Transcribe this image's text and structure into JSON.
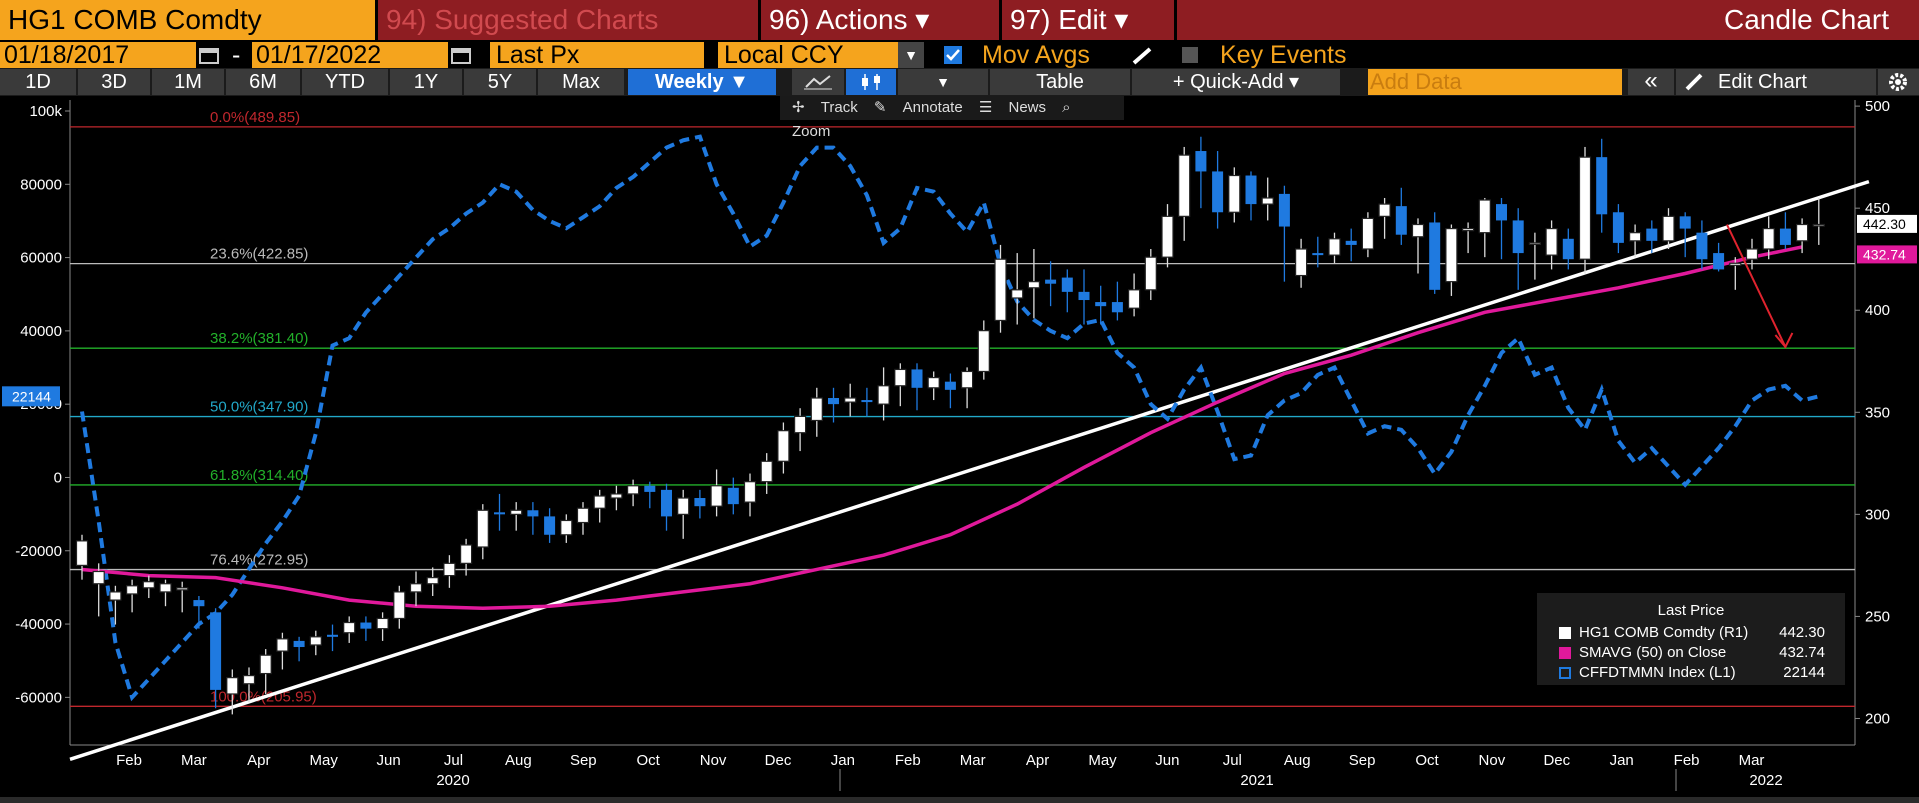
{
  "header": {
    "ticker_label": "HG1 COMB Comdty",
    "suggested_charts": "94) Suggested Charts",
    "actions": "96) Actions ▾",
    "edit": "97) Edit ▾",
    "chart_type_title": "Candle Chart"
  },
  "controls": {
    "start_date": "01/18/2017",
    "date_sep": "-",
    "end_date": "01/17/2022",
    "price_field": "Last Px",
    "currency": "Local CCY",
    "mov_avgs_label": "Mov Avgs",
    "key_events_label": "Key Events"
  },
  "toolbar": {
    "ranges": [
      "1D",
      "3D",
      "1M",
      "6M",
      "YTD",
      "1Y",
      "5Y",
      "Max"
    ],
    "period": "Weekly ▼",
    "table": "Table",
    "quick_add": "+ Quick-Add ▾",
    "add_data_placeholder": "Add Data",
    "collapse": "«",
    "edit_chart": "Edit Chart"
  },
  "subtoolbar": {
    "track": "Track",
    "annotate": "Annotate",
    "news": "News",
    "zoom": "Zoom"
  },
  "colors": {
    "amber": "#f5a41d",
    "maroon": "#8e1d22",
    "blue": "#1f7ae0",
    "magenta": "#e0199b",
    "up": "#ffffff"
  },
  "chart_data": {
    "type": "candlestick",
    "x_tick_labels": [
      "Feb",
      "Mar",
      "Apr",
      "May",
      "Jun",
      "Jul",
      "Aug",
      "Sep",
      "Oct",
      "Nov",
      "Dec",
      "Jan",
      "Feb",
      "Mar",
      "Apr",
      "May",
      "Jun",
      "Jul",
      "Aug",
      "Sep",
      "Oct",
      "Nov",
      "Dec",
      "Jan",
      "Feb",
      "Mar"
    ],
    "x_year_labels": [
      "2020",
      "2021",
      "2022"
    ],
    "left_axis": {
      "ticks": [
        "100k",
        "80000",
        "60000",
        "40000",
        "20000",
        "0",
        "-20000",
        "-40000",
        "-60000"
      ],
      "ylim": [
        -73000,
        103000
      ]
    },
    "right_axis": {
      "ticks": [
        "500",
        "450",
        "400",
        "350",
        "300",
        "250",
        "200"
      ],
      "ylim": [
        187,
        503
      ]
    },
    "fib_levels": [
      {
        "label": "0.0%(489.85)",
        "value": 489.85,
        "color": "#c0272d"
      },
      {
        "label": "23.6%(422.85)",
        "value": 422.85,
        "color": "#bbbbbb"
      },
      {
        "label": "38.2%(381.40)",
        "value": 381.4,
        "color": "#22b02a"
      },
      {
        "label": "50.0%(347.90)",
        "value": 347.9,
        "color": "#22a8c8"
      },
      {
        "label": "61.8%(314.40)",
        "value": 314.4,
        "color": "#22b02a"
      },
      {
        "label": "76.4%(272.95)",
        "value": 272.95,
        "color": "#bbbbbb"
      },
      {
        "label": "100.0%(205.95)",
        "value": 205.95,
        "color": "#c0272d"
      }
    ],
    "trendline": {
      "from": [
        0,
        180
      ],
      "to": [
        107,
        463
      ]
    },
    "arrow": {
      "from": [
        98.5,
        442
      ],
      "to": [
        102,
        382
      ]
    },
    "candles": [
      [
        0,
        275,
        287,
        272,
        290,
        268
      ],
      [
        1,
        266,
        272,
        254,
        276,
        250
      ],
      [
        2,
        258,
        262,
        250,
        265,
        246
      ],
      [
        3,
        261,
        265,
        256,
        268,
        252
      ],
      [
        4,
        264,
        267,
        262,
        270,
        259
      ],
      [
        5,
        262,
        266,
        258,
        268,
        255
      ],
      [
        6,
        263,
        264,
        257,
        267,
        252
      ],
      [
        7,
        258,
        255,
        249,
        260,
        244
      ],
      [
        8,
        252,
        214,
        208,
        254,
        205
      ],
      [
        9,
        212,
        220,
        206,
        224,
        202
      ],
      [
        10,
        217,
        221,
        212,
        225,
        208
      ],
      [
        11,
        222,
        231,
        215,
        234,
        212
      ],
      [
        12,
        233,
        239,
        226,
        242,
        224
      ],
      [
        13,
        238,
        235,
        230,
        240,
        228
      ],
      [
        14,
        236,
        240,
        233,
        243,
        231
      ],
      [
        15,
        241,
        240,
        235,
        246,
        233
      ],
      [
        16,
        242,
        247,
        239,
        250,
        237
      ],
      [
        17,
        247,
        244,
        240,
        250,
        238
      ],
      [
        18,
        244,
        249,
        240,
        252,
        238
      ],
      [
        19,
        249,
        262,
        246,
        265,
        244
      ],
      [
        20,
        262,
        266,
        257,
        272,
        255
      ],
      [
        21,
        266,
        269,
        263,
        274,
        260
      ],
      [
        22,
        270,
        276,
        266,
        280,
        264
      ],
      [
        23,
        276,
        285,
        272,
        288,
        270
      ],
      [
        24,
        284,
        302,
        280,
        305,
        278
      ],
      [
        25,
        301,
        300,
        294,
        310,
        292
      ],
      [
        26,
        300,
        302,
        294,
        306,
        292
      ],
      [
        27,
        302,
        299,
        293,
        306,
        290
      ],
      [
        28,
        299,
        290,
        288,
        303,
        286
      ],
      [
        29,
        290,
        297,
        289,
        300,
        286
      ],
      [
        30,
        296,
        303,
        293,
        306,
        290
      ],
      [
        31,
        303,
        309,
        298,
        312,
        296
      ],
      [
        32,
        308,
        310,
        304,
        314,
        302
      ],
      [
        33,
        310,
        314,
        306,
        317,
        304
      ],
      [
        34,
        314,
        311,
        306,
        316,
        303
      ],
      [
        35,
        312,
        299,
        296,
        315,
        292
      ],
      [
        36,
        300,
        308,
        296,
        312,
        288
      ],
      [
        37,
        308,
        304,
        300,
        312,
        298
      ],
      [
        38,
        304,
        314,
        302,
        322,
        299
      ],
      [
        39,
        313,
        305,
        303,
        318,
        300
      ],
      [
        40,
        306,
        316,
        302,
        320,
        299
      ],
      [
        41,
        316,
        326,
        312,
        330,
        310
      ],
      [
        42,
        326,
        341,
        322,
        345,
        320
      ],
      [
        43,
        340,
        348,
        334,
        352,
        331
      ],
      [
        44,
        346,
        357,
        340,
        362,
        338
      ],
      [
        45,
        357,
        354,
        347,
        362,
        345
      ],
      [
        46,
        355,
        357,
        350,
        364,
        348
      ],
      [
        47,
        356,
        355,
        350,
        362,
        348
      ],
      [
        48,
        354,
        363,
        350,
        372,
        346
      ],
      [
        49,
        363,
        371,
        356,
        374,
        353
      ],
      [
        50,
        371,
        362,
        354,
        374,
        351
      ],
      [
        51,
        362,
        367,
        359,
        370,
        356
      ],
      [
        52,
        365,
        361,
        355,
        369,
        352
      ],
      [
        53,
        362,
        370,
        356,
        372,
        352
      ],
      [
        54,
        370,
        390,
        368,
        395,
        366
      ],
      [
        55,
        395,
        425,
        392,
        432,
        389
      ],
      [
        56,
        406,
        410,
        398,
        428,
        393
      ],
      [
        57,
        411,
        414,
        405,
        430,
        396
      ],
      [
        58,
        415,
        413,
        407,
        424,
        402
      ],
      [
        59,
        416,
        409,
        405,
        420,
        399
      ],
      [
        60,
        409,
        405,
        398,
        420,
        393
      ],
      [
        61,
        404,
        402,
        397,
        412,
        393
      ],
      [
        62,
        404,
        399,
        398,
        414,
        395
      ],
      [
        63,
        401,
        410,
        399,
        418,
        397
      ],
      [
        64,
        410,
        426,
        409,
        430,
        405
      ],
      [
        65,
        426,
        446,
        423,
        452,
        421
      ],
      [
        66,
        446,
        476,
        438,
        480,
        434
      ],
      [
        67,
        478,
        468,
        456,
        485,
        450
      ],
      [
        68,
        468,
        448,
        444,
        478,
        440
      ],
      [
        69,
        448,
        466,
        446,
        470,
        443
      ],
      [
        70,
        466,
        452,
        447,
        468,
        444
      ],
      [
        71,
        452,
        455,
        448,
        465,
        444
      ],
      [
        72,
        457,
        441,
        416,
        461,
        414
      ],
      [
        73,
        417,
        430,
        414,
        435,
        411
      ],
      [
        74,
        428,
        427,
        424,
        436,
        421
      ],
      [
        75,
        427,
        435,
        426,
        438,
        423
      ],
      [
        76,
        434,
        432,
        428,
        440,
        424
      ],
      [
        77,
        430,
        445,
        429,
        448,
        426
      ],
      [
        78,
        446,
        452,
        446,
        455,
        435
      ],
      [
        79,
        451,
        437,
        434,
        460,
        432
      ],
      [
        80,
        436,
        442,
        420,
        445,
        418
      ],
      [
        81,
        443,
        410,
        409,
        448,
        408
      ],
      [
        82,
        414,
        440,
        410,
        442,
        407
      ],
      [
        83,
        439,
        440,
        432,
        443,
        428
      ],
      [
        84,
        438,
        454,
        439,
        455,
        426
      ],
      [
        85,
        452,
        444,
        440,
        455,
        425
      ],
      [
        86,
        444,
        428,
        412,
        450,
        410
      ],
      [
        87,
        433,
        433,
        420,
        438,
        415
      ],
      [
        88,
        427,
        440,
        419,
        444,
        420
      ],
      [
        89,
        435,
        425,
        422,
        440,
        420
      ],
      [
        90,
        425,
        475,
        425,
        480,
        418
      ],
      [
        91,
        475,
        447,
        442,
        484,
        438
      ],
      [
        92,
        448,
        433,
        430,
        452,
        428
      ],
      [
        93,
        434,
        438,
        429,
        442,
        426
      ],
      [
        94,
        440,
        434,
        431,
        444,
        428
      ],
      [
        95,
        434,
        446,
        434,
        450,
        430
      ],
      [
        96,
        446,
        440,
        436,
        448,
        426
      ],
      [
        97,
        438,
        425,
        424,
        444,
        420
      ],
      [
        98,
        428,
        420,
        422,
        433,
        419
      ],
      [
        99,
        422,
        423,
        419,
        426,
        410
      ],
      [
        100,
        425,
        430,
        424,
        435,
        420
      ],
      [
        101,
        430,
        440,
        428,
        446,
        425
      ],
      [
        102,
        440,
        432,
        434,
        448,
        430
      ],
      [
        103,
        434,
        442,
        432,
        445,
        428
      ],
      [
        104,
        442,
        442,
        435,
        455,
        432
      ]
    ],
    "sma50_on_close": [
      [
        0,
        273
      ],
      [
        4,
        270
      ],
      [
        8,
        269
      ],
      [
        12,
        264
      ],
      [
        16,
        258
      ],
      [
        20,
        255
      ],
      [
        24,
        254
      ],
      [
        28,
        255
      ],
      [
        32,
        258
      ],
      [
        36,
        262
      ],
      [
        40,
        266
      ],
      [
        44,
        273
      ],
      [
        48,
        280
      ],
      [
        52,
        290
      ],
      [
        56,
        305
      ],
      [
        60,
        323
      ],
      [
        64,
        340
      ],
      [
        68,
        355
      ],
      [
        72,
        369
      ],
      [
        76,
        378
      ],
      [
        80,
        389
      ],
      [
        84,
        399
      ],
      [
        88,
        405
      ],
      [
        92,
        411
      ],
      [
        96,
        418
      ],
      [
        100,
        426
      ],
      [
        103,
        431
      ]
    ],
    "cftc_net_positioning": [
      [
        0,
        18000
      ],
      [
        1,
        -12000
      ],
      [
        2,
        -45000
      ],
      [
        3,
        -60000
      ],
      [
        4,
        -55000
      ],
      [
        5,
        -50000
      ],
      [
        6,
        -45000
      ],
      [
        7,
        -40000
      ],
      [
        8,
        -37000
      ],
      [
        9,
        -32000
      ],
      [
        10,
        -25000
      ],
      [
        11,
        -18000
      ],
      [
        12,
        -12000
      ],
      [
        13,
        -5000
      ],
      [
        14,
        12000
      ],
      [
        15,
        36000
      ],
      [
        16,
        38000
      ],
      [
        17,
        45000
      ],
      [
        18,
        50000
      ],
      [
        19,
        55000
      ],
      [
        20,
        60000
      ],
      [
        21,
        65000
      ],
      [
        22,
        68000
      ],
      [
        23,
        72000
      ],
      [
        24,
        75000
      ],
      [
        25,
        80000
      ],
      [
        26,
        78000
      ],
      [
        27,
        73000
      ],
      [
        28,
        70000
      ],
      [
        29,
        68000
      ],
      [
        30,
        71000
      ],
      [
        31,
        74000
      ],
      [
        32,
        79000
      ],
      [
        33,
        82000
      ],
      [
        34,
        86000
      ],
      [
        35,
        90000
      ],
      [
        36,
        92000
      ],
      [
        37,
        93000
      ],
      [
        38,
        80000
      ],
      [
        39,
        72000
      ],
      [
        40,
        63000
      ],
      [
        41,
        66000
      ],
      [
        42,
        75000
      ],
      [
        43,
        85000
      ],
      [
        44,
        90000
      ],
      [
        45,
        90000
      ],
      [
        46,
        85000
      ],
      [
        47,
        77000
      ],
      [
        48,
        64000
      ],
      [
        49,
        68000
      ],
      [
        50,
        79000
      ],
      [
        51,
        78000
      ],
      [
        52,
        72000
      ],
      [
        53,
        67000
      ],
      [
        54,
        75000
      ],
      [
        55,
        58000
      ],
      [
        56,
        48000
      ],
      [
        57,
        43000
      ],
      [
        58,
        40000
      ],
      [
        59,
        38000
      ],
      [
        60,
        42000
      ],
      [
        61,
        43000
      ],
      [
        62,
        34000
      ],
      [
        63,
        30000
      ],
      [
        64,
        20000
      ],
      [
        65,
        16000
      ],
      [
        66,
        24000
      ],
      [
        67,
        30000
      ],
      [
        68,
        18000
      ],
      [
        69,
        5000
      ],
      [
        70,
        6000
      ],
      [
        71,
        17000
      ],
      [
        72,
        21000
      ],
      [
        73,
        23000
      ],
      [
        74,
        28000
      ],
      [
        75,
        30000
      ],
      [
        76,
        21000
      ],
      [
        77,
        12000
      ],
      [
        78,
        14000
      ],
      [
        79,
        13000
      ],
      [
        80,
        8000
      ],
      [
        81,
        1000
      ],
      [
        82,
        7000
      ],
      [
        83,
        17000
      ],
      [
        84,
        25000
      ],
      [
        85,
        34000
      ],
      [
        86,
        38000
      ],
      [
        87,
        28000
      ],
      [
        88,
        30000
      ],
      [
        89,
        19000
      ],
      [
        90,
        13000
      ],
      [
        91,
        24000
      ],
      [
        92,
        10000
      ],
      [
        93,
        4000
      ],
      [
        94,
        8000
      ],
      [
        95,
        3000
      ],
      [
        96,
        -2000
      ],
      [
        97,
        3000
      ],
      [
        98,
        8000
      ],
      [
        99,
        14000
      ],
      [
        100,
        21000
      ],
      [
        101,
        24000
      ],
      [
        102,
        25000
      ],
      [
        103,
        21000
      ],
      [
        104,
        22144
      ]
    ],
    "last_price_tags": {
      "price": "442.30",
      "sma": "432.74",
      "positioning": "22144"
    }
  },
  "legend": {
    "title": "Last Price",
    "items": [
      {
        "name": "HG1 COMB Comdty (R1)",
        "value": "442.30"
      },
      {
        "name": "SMAVG (50) on Close",
        "value": "432.74"
      },
      {
        "name": "CFFDTMMN Index (L1)",
        "value": "22144"
      }
    ]
  }
}
